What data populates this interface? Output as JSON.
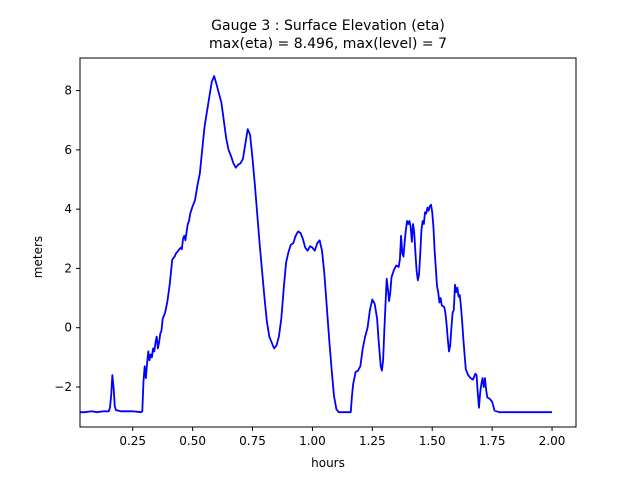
{
  "chart_data": {
    "type": "line",
    "title_line1": "Gauge 3 : Surface Elevation (eta)",
    "title_line2": "max(eta) =   8.496,    max(level) = 7",
    "xlabel": "hours",
    "ylabel": "meters",
    "xlim": [
      0.03,
      2.1
    ],
    "ylim": [
      -3.35,
      9.1
    ],
    "xticks": [
      {
        "value": 0.25,
        "label": "0.25"
      },
      {
        "value": 0.5,
        "label": "0.50"
      },
      {
        "value": 0.75,
        "label": "0.75"
      },
      {
        "value": 1.0,
        "label": "1.00"
      },
      {
        "value": 1.25,
        "label": "1.25"
      },
      {
        "value": 1.5,
        "label": "1.50"
      },
      {
        "value": 1.75,
        "label": "1.75"
      },
      {
        "value": 2.0,
        "label": "2.00"
      }
    ],
    "yticks": [
      {
        "value": -2,
        "label": "−2"
      },
      {
        "value": 0,
        "label": "0"
      },
      {
        "value": 2,
        "label": "2"
      },
      {
        "value": 4,
        "label": "4"
      },
      {
        "value": 6,
        "label": "6"
      },
      {
        "value": 8,
        "label": "8"
      }
    ],
    "grid": false,
    "series": [
      {
        "color": "#0000ff",
        "points": [
          [
            0.03,
            -2.85
          ],
          [
            0.05,
            -2.85
          ],
          [
            0.08,
            -2.82
          ],
          [
            0.1,
            -2.85
          ],
          [
            0.13,
            -2.82
          ],
          [
            0.15,
            -2.82
          ],
          [
            0.155,
            -2.7
          ],
          [
            0.16,
            -2.3
          ],
          [
            0.165,
            -1.6
          ],
          [
            0.17,
            -2.0
          ],
          [
            0.175,
            -2.65
          ],
          [
            0.18,
            -2.78
          ],
          [
            0.2,
            -2.82
          ],
          [
            0.25,
            -2.82
          ],
          [
            0.285,
            -2.85
          ],
          [
            0.29,
            -2.82
          ],
          [
            0.295,
            -1.8
          ],
          [
            0.3,
            -1.3
          ],
          [
            0.305,
            -1.7
          ],
          [
            0.31,
            -1.2
          ],
          [
            0.315,
            -0.8
          ],
          [
            0.32,
            -1.1
          ],
          [
            0.325,
            -0.9
          ],
          [
            0.33,
            -1.0
          ],
          [
            0.335,
            -0.7
          ],
          [
            0.34,
            -0.8
          ],
          [
            0.345,
            -0.5
          ],
          [
            0.35,
            -0.3
          ],
          [
            0.355,
            -0.7
          ],
          [
            0.36,
            -0.5
          ],
          [
            0.365,
            -0.2
          ],
          [
            0.37,
            -0.1
          ],
          [
            0.375,
            0.3
          ],
          [
            0.385,
            0.5
          ],
          [
            0.395,
            0.9
          ],
          [
            0.405,
            1.5
          ],
          [
            0.41,
            1.9
          ],
          [
            0.415,
            2.3
          ],
          [
            0.425,
            2.4
          ],
          [
            0.43,
            2.5
          ],
          [
            0.44,
            2.6
          ],
          [
            0.45,
            2.7
          ],
          [
            0.455,
            2.65
          ],
          [
            0.46,
            3.0
          ],
          [
            0.465,
            3.1
          ],
          [
            0.47,
            2.95
          ],
          [
            0.475,
            3.25
          ],
          [
            0.48,
            3.5
          ],
          [
            0.485,
            3.6
          ],
          [
            0.49,
            3.85
          ],
          [
            0.5,
            4.1
          ],
          [
            0.51,
            4.3
          ],
          [
            0.52,
            4.8
          ],
          [
            0.53,
            5.2
          ],
          [
            0.54,
            6.0
          ],
          [
            0.55,
            6.8
          ],
          [
            0.56,
            7.3
          ],
          [
            0.57,
            7.8
          ],
          [
            0.58,
            8.3
          ],
          [
            0.59,
            8.49
          ],
          [
            0.6,
            8.2
          ],
          [
            0.61,
            7.9
          ],
          [
            0.62,
            7.6
          ],
          [
            0.63,
            7.0
          ],
          [
            0.64,
            6.4
          ],
          [
            0.65,
            6.0
          ],
          [
            0.66,
            5.8
          ],
          [
            0.67,
            5.55
          ],
          [
            0.68,
            5.4
          ],
          [
            0.69,
            5.5
          ],
          [
            0.7,
            5.55
          ],
          [
            0.71,
            5.7
          ],
          [
            0.72,
            6.2
          ],
          [
            0.73,
            6.7
          ],
          [
            0.74,
            6.5
          ],
          [
            0.75,
            5.7
          ],
          [
            0.76,
            4.8
          ],
          [
            0.77,
            3.8
          ],
          [
            0.78,
            2.8
          ],
          [
            0.79,
            1.9
          ],
          [
            0.8,
            1.0
          ],
          [
            0.81,
            0.2
          ],
          [
            0.82,
            -0.3
          ],
          [
            0.83,
            -0.5
          ],
          [
            0.84,
            -0.7
          ],
          [
            0.85,
            -0.6
          ],
          [
            0.86,
            -0.3
          ],
          [
            0.87,
            0.3
          ],
          [
            0.88,
            1.3
          ],
          [
            0.89,
            2.2
          ],
          [
            0.9,
            2.55
          ],
          [
            0.91,
            2.8
          ],
          [
            0.92,
            2.85
          ],
          [
            0.93,
            3.1
          ],
          [
            0.94,
            3.25
          ],
          [
            0.95,
            3.2
          ],
          [
            0.96,
            3.0
          ],
          [
            0.97,
            2.7
          ],
          [
            0.98,
            2.6
          ],
          [
            0.99,
            2.75
          ],
          [
            1.0,
            2.7
          ],
          [
            1.01,
            2.6
          ],
          [
            1.02,
            2.85
          ],
          [
            1.03,
            2.95
          ],
          [
            1.04,
            2.6
          ],
          [
            1.05,
            1.8
          ],
          [
            1.06,
            0.7
          ],
          [
            1.07,
            -0.4
          ],
          [
            1.08,
            -1.4
          ],
          [
            1.09,
            -2.3
          ],
          [
            1.1,
            -2.75
          ],
          [
            1.11,
            -2.85
          ],
          [
            1.13,
            -2.85
          ],
          [
            1.15,
            -2.85
          ],
          [
            1.16,
            -2.85
          ],
          [
            1.165,
            -2.3
          ],
          [
            1.17,
            -1.9
          ],
          [
            1.18,
            -1.5
          ],
          [
            1.19,
            -1.45
          ],
          [
            1.2,
            -1.3
          ],
          [
            1.21,
            -0.7
          ],
          [
            1.22,
            -0.3
          ],
          [
            1.23,
            0.0
          ],
          [
            1.24,
            0.6
          ],
          [
            1.25,
            0.95
          ],
          [
            1.26,
            0.8
          ],
          [
            1.27,
            0.3
          ],
          [
            1.275,
            -0.3
          ],
          [
            1.28,
            -0.8
          ],
          [
            1.285,
            -1.3
          ],
          [
            1.29,
            -1.45
          ],
          [
            1.295,
            -1.1
          ],
          [
            1.3,
            -0.1
          ],
          [
            1.305,
            0.8
          ],
          [
            1.31,
            1.65
          ],
          [
            1.315,
            1.3
          ],
          [
            1.32,
            0.9
          ],
          [
            1.325,
            1.2
          ],
          [
            1.33,
            1.7
          ],
          [
            1.34,
            1.95
          ],
          [
            1.35,
            2.1
          ],
          [
            1.36,
            2.05
          ],
          [
            1.365,
            2.3
          ],
          [
            1.37,
            3.1
          ],
          [
            1.375,
            2.5
          ],
          [
            1.38,
            2.4
          ],
          [
            1.385,
            2.9
          ],
          [
            1.39,
            3.3
          ],
          [
            1.395,
            3.6
          ],
          [
            1.4,
            3.5
          ],
          [
            1.405,
            3.6
          ],
          [
            1.41,
            3.4
          ],
          [
            1.415,
            2.9
          ],
          [
            1.42,
            3.5
          ],
          [
            1.425,
            3.2
          ],
          [
            1.43,
            2.5
          ],
          [
            1.435,
            1.9
          ],
          [
            1.44,
            1.6
          ],
          [
            1.445,
            1.8
          ],
          [
            1.45,
            2.5
          ],
          [
            1.455,
            3.3
          ],
          [
            1.46,
            3.6
          ],
          [
            1.465,
            3.5
          ],
          [
            1.47,
            3.9
          ],
          [
            1.475,
            3.85
          ],
          [
            1.48,
            4.05
          ],
          [
            1.485,
            3.95
          ],
          [
            1.49,
            4.1
          ],
          [
            1.495,
            4.15
          ],
          [
            1.5,
            3.9
          ],
          [
            1.505,
            3.4
          ],
          [
            1.51,
            2.6
          ],
          [
            1.515,
            2.0
          ],
          [
            1.52,
            1.4
          ],
          [
            1.525,
            1.2
          ],
          [
            1.53,
            0.85
          ],
          [
            1.535,
            1.0
          ],
          [
            1.54,
            0.75
          ],
          [
            1.55,
            0.7
          ],
          [
            1.555,
            0.5
          ],
          [
            1.56,
            0.1
          ],
          [
            1.565,
            -0.4
          ],
          [
            1.57,
            -0.8
          ],
          [
            1.575,
            -0.6
          ],
          [
            1.58,
            0.0
          ],
          [
            1.585,
            0.5
          ],
          [
            1.59,
            0.6
          ],
          [
            1.595,
            1.45
          ],
          [
            1.6,
            1.2
          ],
          [
            1.605,
            1.35
          ],
          [
            1.61,
            1.05
          ],
          [
            1.615,
            1.1
          ],
          [
            1.62,
            0.7
          ],
          [
            1.625,
            0.2
          ],
          [
            1.63,
            -0.4
          ],
          [
            1.635,
            -0.9
          ],
          [
            1.64,
            -1.4
          ],
          [
            1.65,
            -1.6
          ],
          [
            1.66,
            -1.7
          ],
          [
            1.67,
            -1.75
          ],
          [
            1.68,
            -1.55
          ],
          [
            1.685,
            -1.6
          ],
          [
            1.69,
            -2.2
          ],
          [
            1.695,
            -2.7
          ],
          [
            1.7,
            -2.2
          ],
          [
            1.705,
            -1.9
          ],
          [
            1.71,
            -1.7
          ],
          [
            1.715,
            -2.0
          ],
          [
            1.72,
            -1.7
          ],
          [
            1.725,
            -2.1
          ],
          [
            1.73,
            -2.35
          ],
          [
            1.74,
            -2.4
          ],
          [
            1.75,
            -2.5
          ],
          [
            1.76,
            -2.8
          ],
          [
            1.78,
            -2.85
          ],
          [
            1.85,
            -2.85
          ],
          [
            1.95,
            -2.85
          ],
          [
            2.0,
            -2.85
          ]
        ]
      }
    ]
  }
}
